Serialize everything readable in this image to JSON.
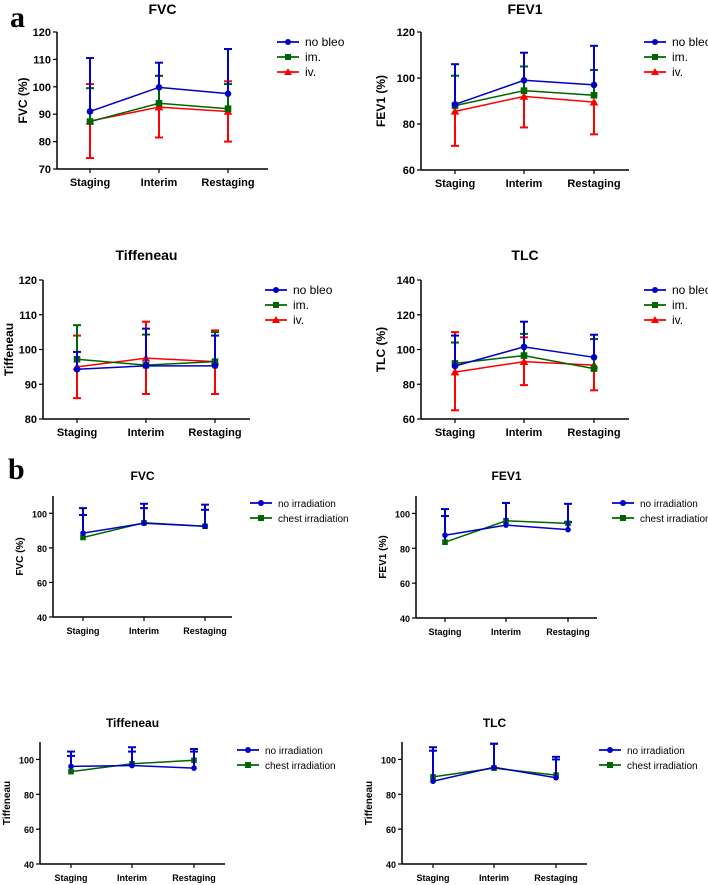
{
  "panel_labels": [
    "a",
    "b"
  ],
  "colors": {
    "no bleo": "#0000c8",
    "im.": "#006400",
    "iv.": "#ff0000",
    "no irradiation": "#0000c8",
    "chest irradiation": "#006400"
  },
  "chart_data": [
    {
      "panel": "a",
      "type": "line",
      "title": "FVC",
      "ylabel": "FVC (%)",
      "categories": [
        "Staging",
        "Interim",
        "Restaging"
      ],
      "ylim": [
        70,
        120
      ],
      "yticks": [
        70,
        80,
        90,
        100,
        110,
        120
      ],
      "legend": "right",
      "series": [
        {
          "name": "no bleo",
          "marker": "circle",
          "values": [
            91,
            99.8,
            97.5
          ],
          "upper": [
            110.5,
            108.8,
            113.8
          ],
          "lower": null
        },
        {
          "name": "im.",
          "marker": "square",
          "values": [
            87.3,
            94,
            92
          ],
          "upper": [
            99.5,
            104,
            101
          ],
          "lower": null
        },
        {
          "name": "iv.",
          "marker": "triangle",
          "values": [
            87.5,
            92.6,
            91
          ],
          "upper": [
            101,
            104,
            102
          ],
          "lower": [
            74,
            81.5,
            80
          ]
        }
      ]
    },
    {
      "panel": "a",
      "type": "line",
      "title": "FEV1",
      "ylabel": "FEV1 (%)",
      "categories": [
        "Staging",
        "Interim",
        "Restaging"
      ],
      "ylim": [
        60,
        120
      ],
      "yticks": [
        60,
        80,
        100,
        120
      ],
      "legend": "right",
      "series": [
        {
          "name": "no bleo",
          "marker": "circle",
          "values": [
            88.5,
            99,
            97
          ],
          "upper": [
            106,
            111,
            114
          ],
          "lower": null
        },
        {
          "name": "im.",
          "marker": "square",
          "values": [
            88,
            94.5,
            92.5
          ],
          "upper": [
            101,
            105,
            103.5
          ],
          "lower": null
        },
        {
          "name": "iv.",
          "marker": "triangle",
          "values": [
            85.5,
            92,
            89.5
          ],
          "upper": null,
          "lower": [
            70.5,
            78.5,
            75.5
          ]
        }
      ]
    },
    {
      "panel": "a",
      "type": "line",
      "title": "Tiffeneau",
      "ylabel": "Tiffeneau",
      "categories": [
        "Staging",
        "Interim",
        "Restaging"
      ],
      "ylim": [
        80,
        120
      ],
      "yticks": [
        80,
        90,
        100,
        110,
        120
      ],
      "legend": "right",
      "series": [
        {
          "name": "no bleo",
          "marker": "circle",
          "values": [
            94.3,
            95.3,
            95.3
          ],
          "upper": [
            99.3,
            106,
            104
          ],
          "lower": null
        },
        {
          "name": "im.",
          "marker": "square",
          "values": [
            97.2,
            95.5,
            96.5
          ],
          "upper": [
            107,
            104.3,
            105
          ],
          "lower": null
        },
        {
          "name": "iv.",
          "marker": "triangle",
          "values": [
            95,
            97.5,
            96.5
          ],
          "upper": [
            104,
            108,
            105.5
          ],
          "lower": [
            86,
            87.2,
            87.2
          ]
        }
      ]
    },
    {
      "panel": "a",
      "type": "line",
      "title": "TLC",
      "ylabel": "TLC (%)",
      "categories": [
        "Staging",
        "Interim",
        "Restaging"
      ],
      "ylim": [
        60,
        140
      ],
      "yticks": [
        60,
        80,
        100,
        120,
        140
      ],
      "legend": "right",
      "series": [
        {
          "name": "no bleo",
          "marker": "circle",
          "values": [
            90.5,
            101.5,
            95.5
          ],
          "upper": [
            108,
            116,
            108.5
          ],
          "lower": null
        },
        {
          "name": "im.",
          "marker": "square",
          "values": [
            92,
            96.5,
            89
          ],
          "upper": [
            104,
            109,
            106
          ],
          "lower": null
        },
        {
          "name": "iv.",
          "marker": "triangle",
          "values": [
            87,
            93,
            91
          ],
          "upper": [
            110,
            107,
            106
          ],
          "lower": [
            65,
            79.5,
            76.5
          ]
        }
      ]
    },
    {
      "panel": "b",
      "type": "line",
      "title": "FVC",
      "ylabel": "FVC (%)",
      "categories": [
        "Staging",
        "Interim",
        "Restaging"
      ],
      "ylim": [
        40,
        110
      ],
      "yticks": [
        40,
        60,
        80,
        100
      ],
      "legend": "right",
      "series": [
        {
          "name": "no irradiation",
          "marker": "circle",
          "values": [
            88.5,
            94.2,
            92.5
          ],
          "upper": [
            103,
            105.5,
            105
          ],
          "lower": null
        },
        {
          "name": "chest irradiation",
          "marker": "square",
          "values": [
            86,
            94.5,
            92.5
          ],
          "upper": [
            99,
            103,
            102
          ],
          "lower": null
        }
      ]
    },
    {
      "panel": "b",
      "type": "line",
      "title": "FEV1",
      "ylabel": "FEV1 (%)",
      "categories": [
        "Staging",
        "Interim",
        "Restaging"
      ],
      "ylim": [
        40,
        110
      ],
      "yticks": [
        40,
        60,
        80,
        100
      ],
      "legend": "right",
      "series": [
        {
          "name": "no irradiation",
          "marker": "circle",
          "values": [
            87.5,
            93.3,
            90.7
          ],
          "upper": [
            102.5,
            106,
            105.5
          ],
          "lower": null
        },
        {
          "name": "chest irradiation",
          "marker": "square",
          "values": [
            83.5,
            95.8,
            94.3
          ],
          "upper": [
            98.5,
            106,
            95
          ],
          "lower": null
        }
      ]
    },
    {
      "panel": "b",
      "type": "line",
      "title": "Tiffeneau",
      "ylabel": "Tiffeneau",
      "categories": [
        "Staging",
        "Interim",
        "Restaging"
      ],
      "ylim": [
        40,
        110
      ],
      "yticks": [
        40,
        60,
        80,
        100
      ],
      "legend": "right",
      "series": [
        {
          "name": "no irradiation",
          "marker": "circle",
          "values": [
            96,
            96.5,
            95
          ],
          "upper": [
            104.5,
            107,
            106
          ],
          "lower": null
        },
        {
          "name": "chest irradiation",
          "marker": "square",
          "values": [
            93,
            97.5,
            99.5
          ],
          "upper": [
            102,
            104.5,
            104.5
          ],
          "lower": null
        }
      ]
    },
    {
      "panel": "b",
      "type": "line",
      "title": "TLC",
      "ylabel": "Tiffeneau",
      "categories": [
        "Staging",
        "Interim",
        "Restaging"
      ],
      "ylim": [
        40,
        110
      ],
      "yticks": [
        40,
        60,
        80,
        100
      ],
      "legend": "right",
      "series": [
        {
          "name": "no irradiation",
          "marker": "circle",
          "values": [
            87.5,
            95.5,
            89.5
          ],
          "upper": [
            107,
            109,
            101.5
          ],
          "lower": null
        },
        {
          "name": "chest irradiation",
          "marker": "square",
          "values": [
            90,
            95,
            91
          ],
          "upper": [
            105,
            109,
            100
          ],
          "lower": null
        }
      ]
    }
  ]
}
